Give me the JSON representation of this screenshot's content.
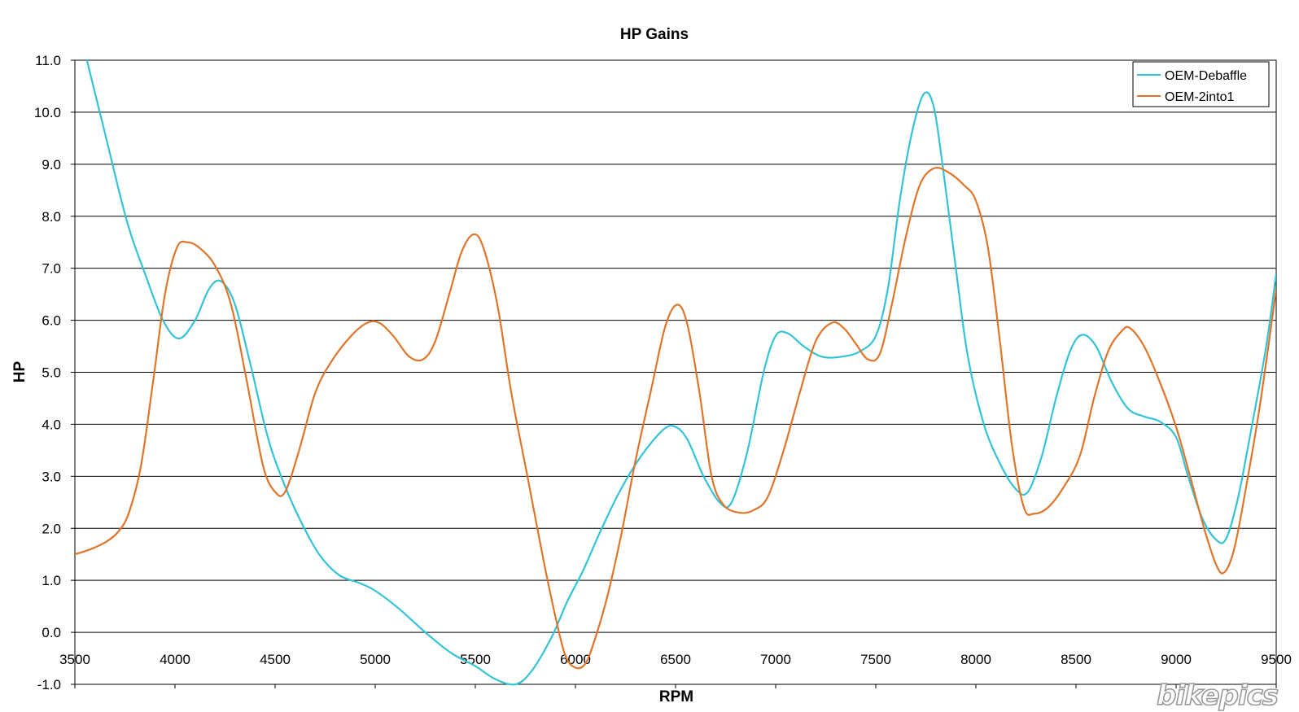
{
  "chart_data": {
    "type": "line",
    "title": "HP Gains",
    "xlabel": "RPM",
    "ylabel": "HP",
    "xlim": [
      3500,
      9500
    ],
    "ylim": [
      -1.0,
      11.0
    ],
    "x_ticks": [
      "3500",
      "4000",
      "4500",
      "5000",
      "5500",
      "6000",
      "6500",
      "7000",
      "7500",
      "8000",
      "8500",
      "9000",
      "9500"
    ],
    "y_ticks": [
      "-1.0",
      "0.0",
      "1.0",
      "2.0",
      "3.0",
      "4.0",
      "5.0",
      "6.0",
      "7.0",
      "8.0",
      "9.0",
      "10.0",
      "11.0"
    ],
    "grid": "horizontal",
    "legend_position": "top-right",
    "series": [
      {
        "name": "OEM-Debaffle",
        "color": "#33c3d6",
        "points": [
          [
            3560,
            11.0
          ],
          [
            3650,
            9.6
          ],
          [
            3760,
            7.9
          ],
          [
            3850,
            6.9
          ],
          [
            3940,
            6.0
          ],
          [
            4020,
            5.65
          ],
          [
            4100,
            6.0
          ],
          [
            4170,
            6.6
          ],
          [
            4230,
            6.75
          ],
          [
            4300,
            6.3
          ],
          [
            4380,
            5.1
          ],
          [
            4460,
            3.8
          ],
          [
            4530,
            3.0
          ],
          [
            4620,
            2.2
          ],
          [
            4720,
            1.5
          ],
          [
            4820,
            1.1
          ],
          [
            4920,
            0.95
          ],
          [
            5000,
            0.8
          ],
          [
            5120,
            0.45
          ],
          [
            5250,
            0.0
          ],
          [
            5380,
            -0.4
          ],
          [
            5500,
            -0.65
          ],
          [
            5600,
            -0.9
          ],
          [
            5700,
            -1.0
          ],
          [
            5780,
            -0.75
          ],
          [
            5880,
            -0.1
          ],
          [
            5960,
            0.6
          ],
          [
            6040,
            1.2
          ],
          [
            6120,
            1.9
          ],
          [
            6220,
            2.7
          ],
          [
            6330,
            3.4
          ],
          [
            6440,
            3.9
          ],
          [
            6500,
            3.95
          ],
          [
            6560,
            3.7
          ],
          [
            6640,
            3.0
          ],
          [
            6720,
            2.5
          ],
          [
            6780,
            2.5
          ],
          [
            6860,
            3.5
          ],
          [
            6940,
            5.0
          ],
          [
            7000,
            5.7
          ],
          [
            7060,
            5.75
          ],
          [
            7140,
            5.5
          ],
          [
            7230,
            5.3
          ],
          [
            7330,
            5.3
          ],
          [
            7420,
            5.4
          ],
          [
            7500,
            5.7
          ],
          [
            7560,
            6.6
          ],
          [
            7620,
            8.3
          ],
          [
            7680,
            9.6
          ],
          [
            7740,
            10.35
          ],
          [
            7790,
            10.1
          ],
          [
            7840,
            8.8
          ],
          [
            7900,
            7.0
          ],
          [
            7960,
            5.3
          ],
          [
            8040,
            4.0
          ],
          [
            8120,
            3.25
          ],
          [
            8200,
            2.75
          ],
          [
            8260,
            2.7
          ],
          [
            8330,
            3.4
          ],
          [
            8400,
            4.5
          ],
          [
            8470,
            5.4
          ],
          [
            8530,
            5.72
          ],
          [
            8600,
            5.5
          ],
          [
            8680,
            4.8
          ],
          [
            8760,
            4.3
          ],
          [
            8840,
            4.15
          ],
          [
            8920,
            4.05
          ],
          [
            9000,
            3.75
          ],
          [
            9060,
            3.0
          ],
          [
            9130,
            2.2
          ],
          [
            9200,
            1.78
          ],
          [
            9250,
            1.8
          ],
          [
            9310,
            2.6
          ],
          [
            9380,
            4.0
          ],
          [
            9450,
            5.5
          ],
          [
            9500,
            6.9
          ]
        ]
      },
      {
        "name": "OEM-2into1",
        "color": "#e0752a",
        "points": [
          [
            3500,
            1.5
          ],
          [
            3580,
            1.6
          ],
          [
            3660,
            1.75
          ],
          [
            3720,
            1.95
          ],
          [
            3770,
            2.3
          ],
          [
            3830,
            3.2
          ],
          [
            3890,
            4.8
          ],
          [
            3950,
            6.5
          ],
          [
            4010,
            7.4
          ],
          [
            4060,
            7.5
          ],
          [
            4120,
            7.4
          ],
          [
            4200,
            7.05
          ],
          [
            4280,
            6.3
          ],
          [
            4360,
            4.8
          ],
          [
            4440,
            3.2
          ],
          [
            4500,
            2.7
          ],
          [
            4550,
            2.7
          ],
          [
            4620,
            3.5
          ],
          [
            4700,
            4.6
          ],
          [
            4780,
            5.2
          ],
          [
            4880,
            5.7
          ],
          [
            4960,
            5.95
          ],
          [
            5020,
            5.95
          ],
          [
            5090,
            5.7
          ],
          [
            5170,
            5.3
          ],
          [
            5240,
            5.25
          ],
          [
            5300,
            5.6
          ],
          [
            5370,
            6.5
          ],
          [
            5430,
            7.3
          ],
          [
            5490,
            7.65
          ],
          [
            5540,
            7.4
          ],
          [
            5610,
            6.3
          ],
          [
            5680,
            4.6
          ],
          [
            5760,
            3.0
          ],
          [
            5840,
            1.4
          ],
          [
            5900,
            0.3
          ],
          [
            5950,
            -0.45
          ],
          [
            6000,
            -0.68
          ],
          [
            6050,
            -0.6
          ],
          [
            6100,
            -0.1
          ],
          [
            6160,
            0.7
          ],
          [
            6230,
            1.9
          ],
          [
            6300,
            3.3
          ],
          [
            6380,
            4.7
          ],
          [
            6450,
            5.9
          ],
          [
            6510,
            6.3
          ],
          [
            6560,
            5.9
          ],
          [
            6620,
            4.6
          ],
          [
            6680,
            3.0
          ],
          [
            6740,
            2.45
          ],
          [
            6820,
            2.3
          ],
          [
            6890,
            2.35
          ],
          [
            6960,
            2.6
          ],
          [
            7040,
            3.5
          ],
          [
            7120,
            4.6
          ],
          [
            7200,
            5.6
          ],
          [
            7280,
            5.95
          ],
          [
            7340,
            5.85
          ],
          [
            7400,
            5.55
          ],
          [
            7460,
            5.25
          ],
          [
            7520,
            5.35
          ],
          [
            7580,
            6.3
          ],
          [
            7650,
            7.6
          ],
          [
            7720,
            8.6
          ],
          [
            7790,
            8.92
          ],
          [
            7860,
            8.85
          ],
          [
            7940,
            8.6
          ],
          [
            8000,
            8.3
          ],
          [
            8060,
            7.4
          ],
          [
            8120,
            5.6
          ],
          [
            8180,
            3.6
          ],
          [
            8240,
            2.4
          ],
          [
            8290,
            2.28
          ],
          [
            8360,
            2.4
          ],
          [
            8440,
            2.8
          ],
          [
            8520,
            3.4
          ],
          [
            8590,
            4.5
          ],
          [
            8660,
            5.4
          ],
          [
            8730,
            5.8
          ],
          [
            8770,
            5.85
          ],
          [
            8840,
            5.5
          ],
          [
            8920,
            4.8
          ],
          [
            9000,
            3.95
          ],
          [
            9070,
            3.0
          ],
          [
            9140,
            2.0
          ],
          [
            9200,
            1.3
          ],
          [
            9240,
            1.15
          ],
          [
            9290,
            1.6
          ],
          [
            9350,
            2.8
          ],
          [
            9420,
            4.4
          ],
          [
            9500,
            6.6
          ]
        ]
      }
    ]
  },
  "watermark": "bikepics"
}
